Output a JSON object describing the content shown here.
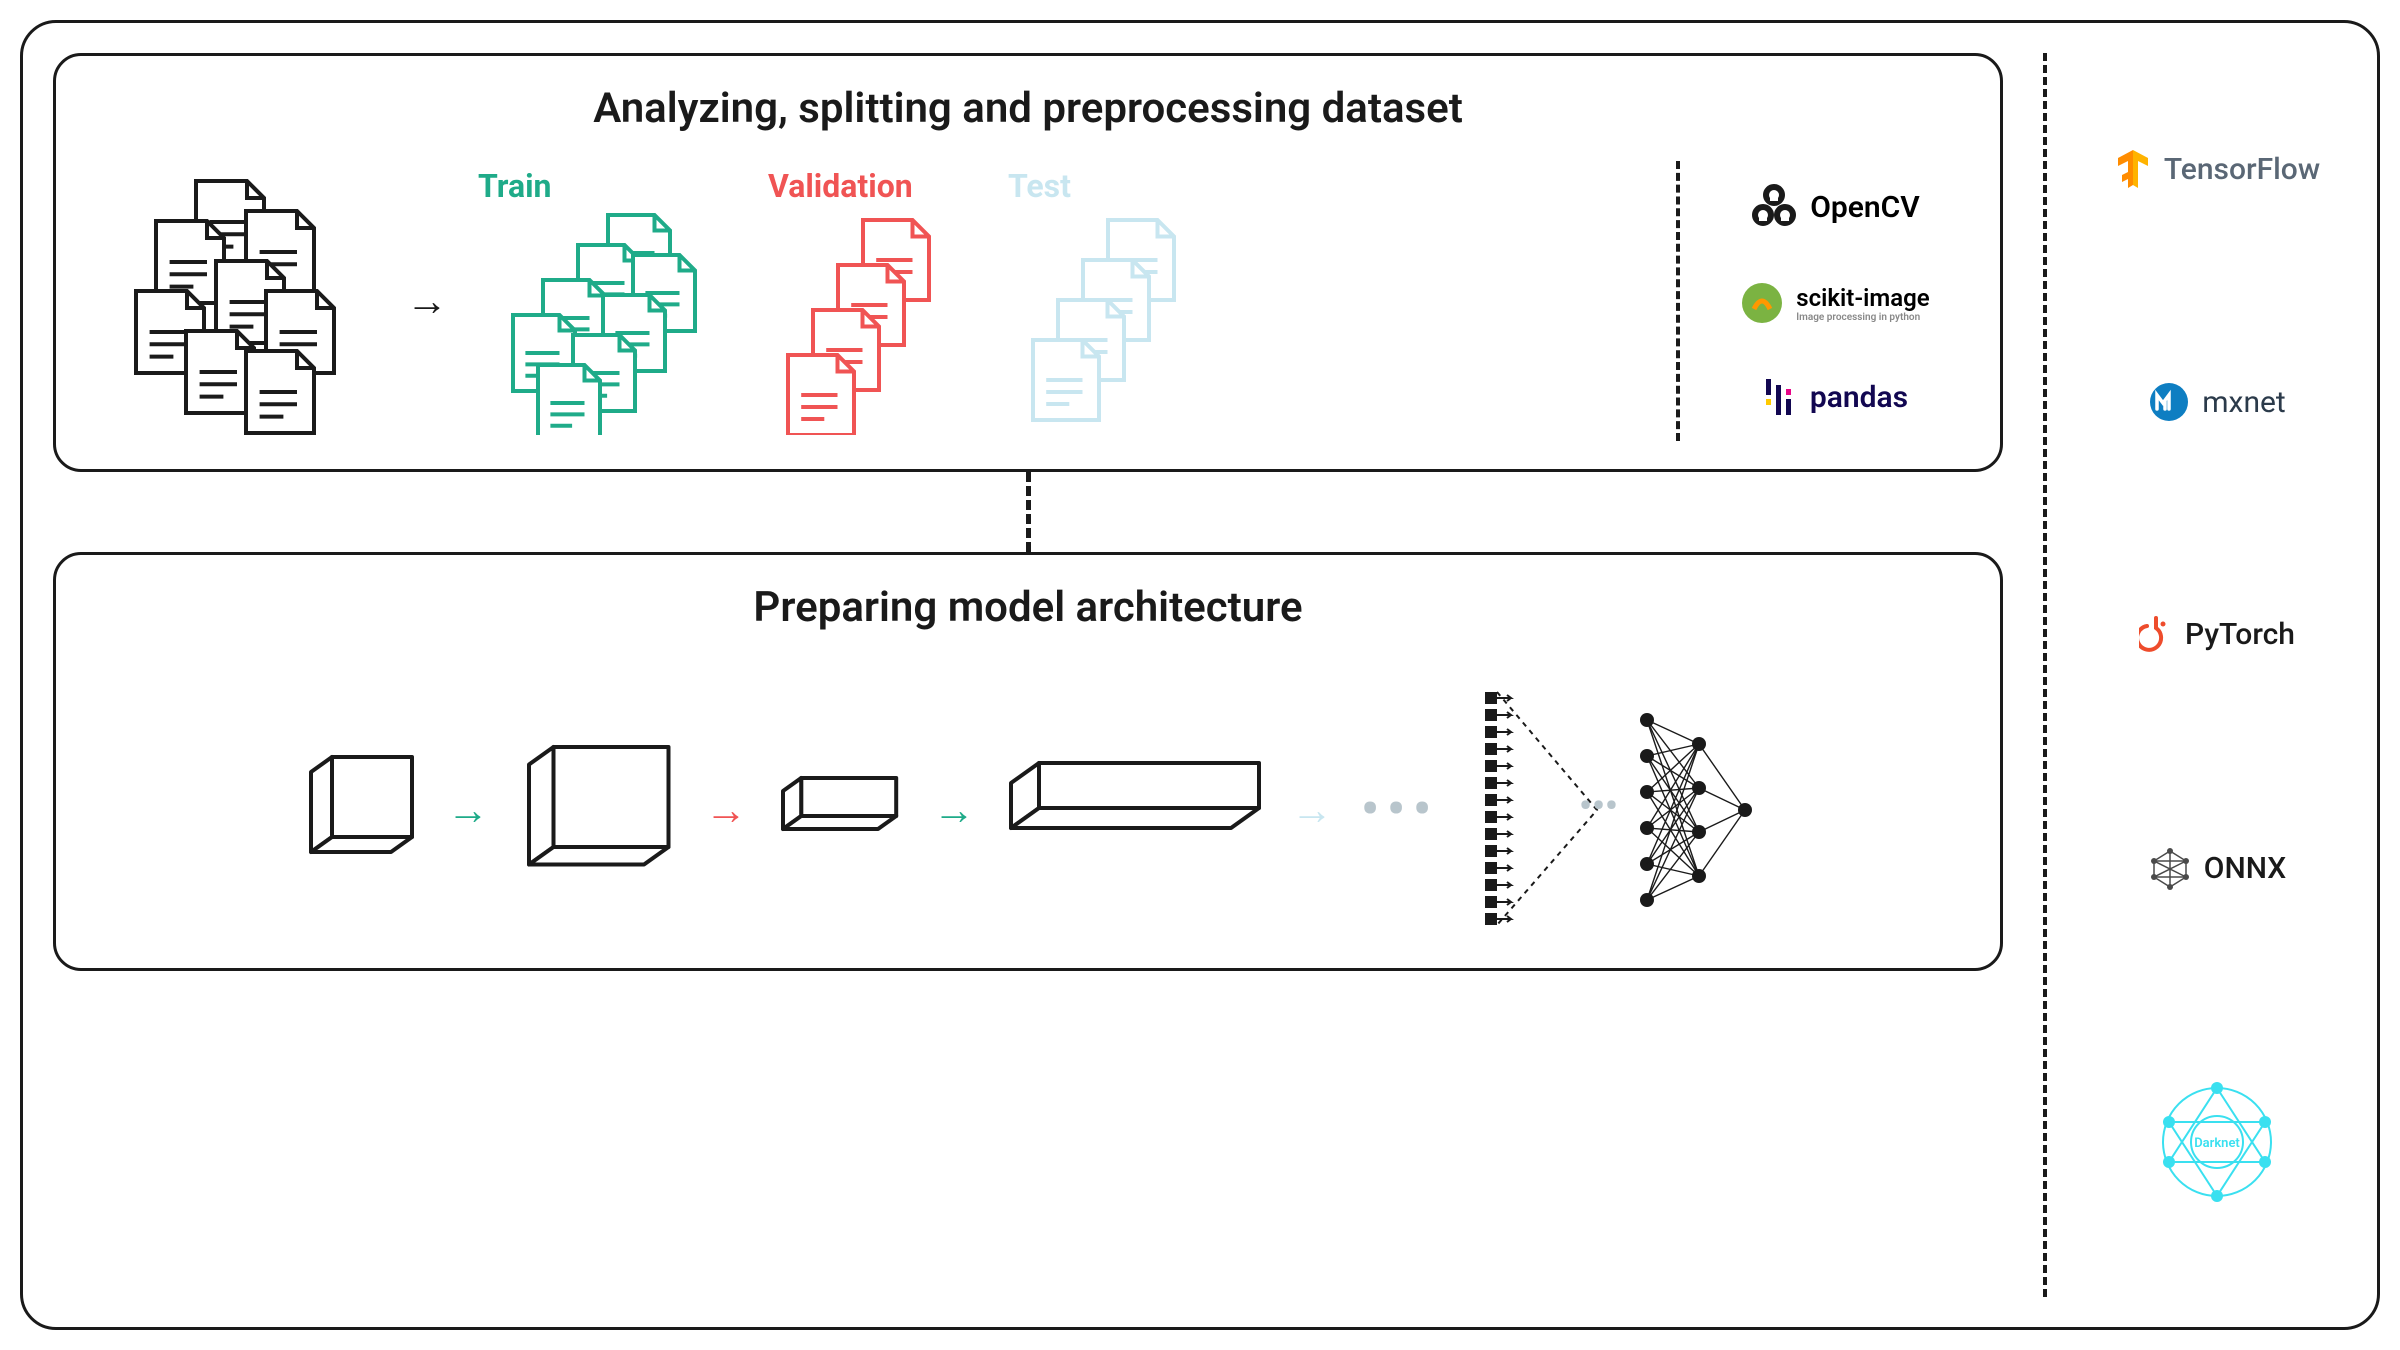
{
  "panel1": {
    "title": "Analyzing, splitting and preprocessing dataset",
    "labels": {
      "train": "Train",
      "validation": "Validation",
      "test": "Test"
    },
    "colors": {
      "train": "#1fab89",
      "validation": "#f05454",
      "test": "#c8e6f0",
      "raw": "#1a1a1a",
      "arrow": "#1a1a1a"
    },
    "tools": [
      {
        "name": "OpenCV",
        "icon": "opencv"
      },
      {
        "name": "scikit-image",
        "sub": "Image processing in python",
        "icon": "scikit"
      },
      {
        "name": "pandas",
        "icon": "pandas"
      }
    ]
  },
  "panel2": {
    "title": "Preparing model architecture",
    "colors": {
      "box": "#1a1a1a",
      "arrow_green": "#1fab89",
      "arrow_red": "#f05454",
      "arrow_light": "#c8e6f0",
      "dots": "#b8c5cc",
      "nn": "#1a1a1a"
    }
  },
  "frameworks": [
    {
      "name": "TensorFlow",
      "icon": "tensorflow",
      "color": "#ff8c00",
      "text_color": "#5a6775"
    },
    {
      "name": "mxnet",
      "icon": "mxnet",
      "color": "#0e7ec2",
      "text_color": "#2b3a4a"
    },
    {
      "name": "PyTorch",
      "icon": "pytorch",
      "color": "#ee4c2c",
      "text_color": "#1a1a1a"
    },
    {
      "name": "ONNX",
      "icon": "onnx",
      "color": "#4a4a4a",
      "text_color": "#1a1a1a"
    },
    {
      "name": "Darknet",
      "icon": "darknet",
      "color": "#3ae0f0",
      "text_color": "#3ae0f0"
    }
  ],
  "style": {
    "border_color": "#1a1a1a",
    "border_radius_outer": 36,
    "border_radius_panel": 28,
    "title_fontsize": 42,
    "label_fontsize": 32
  }
}
